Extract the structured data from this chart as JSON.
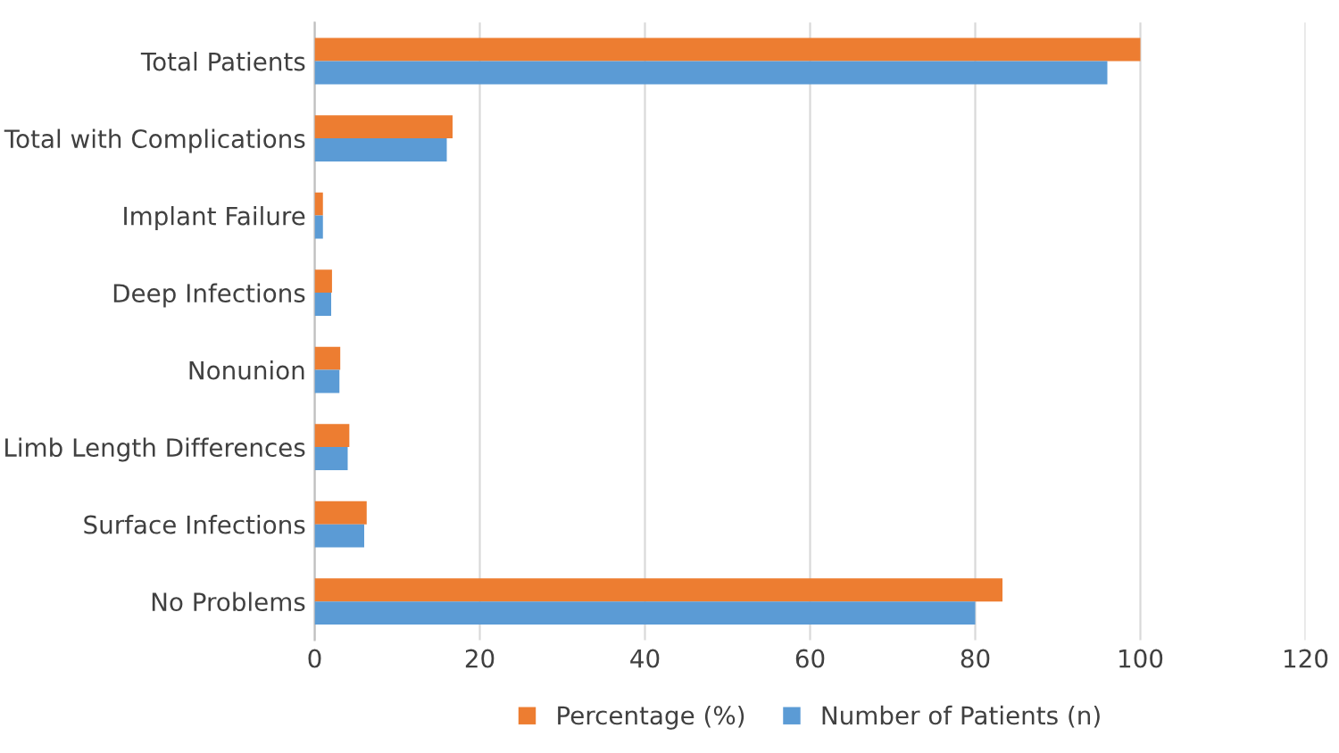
{
  "chart_data": {
    "type": "bar",
    "orientation": "horizontal",
    "categories": [
      "Total Patients",
      "Total with Complications",
      "Implant Failure",
      "Deep Infections",
      "Nonunion",
      "Limb Length Differences",
      "Surface Infections",
      "No Problems"
    ],
    "series": [
      {
        "name": "Percentage (%)",
        "color": "#ed7d31",
        "values": [
          100,
          16.7,
          1.0,
          2.1,
          3.1,
          4.2,
          6.3,
          83.3
        ]
      },
      {
        "name": "Number of Patients (n)",
        "color": "#5b9bd5",
        "values": [
          96,
          16,
          1,
          2,
          3,
          4,
          6,
          80
        ]
      }
    ],
    "xlim": [
      0,
      120
    ],
    "xticks": [
      0,
      20,
      40,
      60,
      80,
      100,
      120
    ],
    "grid": "x",
    "legend": "bottom"
  }
}
